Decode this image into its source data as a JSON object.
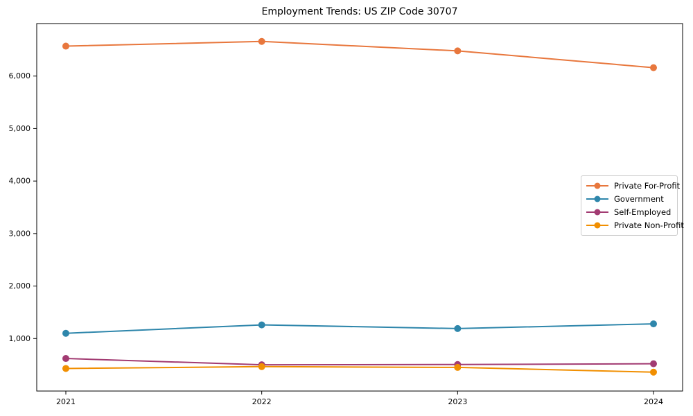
{
  "figure": {
    "background_color": "#ffffff",
    "axis_color": "#000000",
    "legend_border_color": "#cccccc"
  },
  "chart_data": {
    "type": "line",
    "title": "Employment Trends: US ZIP Code 30707",
    "xlabel": "",
    "ylabel": "",
    "categories": [
      "2021",
      "2022",
      "2023",
      "2024"
    ],
    "series": [
      {
        "name": "Private For-Profit",
        "color": "#E8773D",
        "values": [
          6570,
          6660,
          6480,
          6160
        ]
      },
      {
        "name": "Government",
        "color": "#2E86AB",
        "values": [
          1100,
          1260,
          1190,
          1280
        ]
      },
      {
        "name": "Self-Employed",
        "color": "#A23B72",
        "values": [
          620,
          500,
          505,
          520
        ]
      },
      {
        "name": "Private Non-Profit",
        "color": "#F18F01",
        "values": [
          430,
          465,
          450,
          360
        ]
      }
    ],
    "ylim": [
      0,
      7000
    ],
    "yticks": {
      "values": [
        1000,
        2000,
        3000,
        4000,
        5000,
        6000
      ],
      "labels": [
        "1,000",
        "2,000",
        "3,000",
        "4,000",
        "5,000",
        "6,000"
      ]
    },
    "grid": false,
    "legend_position": "center-right",
    "marker": "circle",
    "marker_radius": 5,
    "line_width": 2
  }
}
